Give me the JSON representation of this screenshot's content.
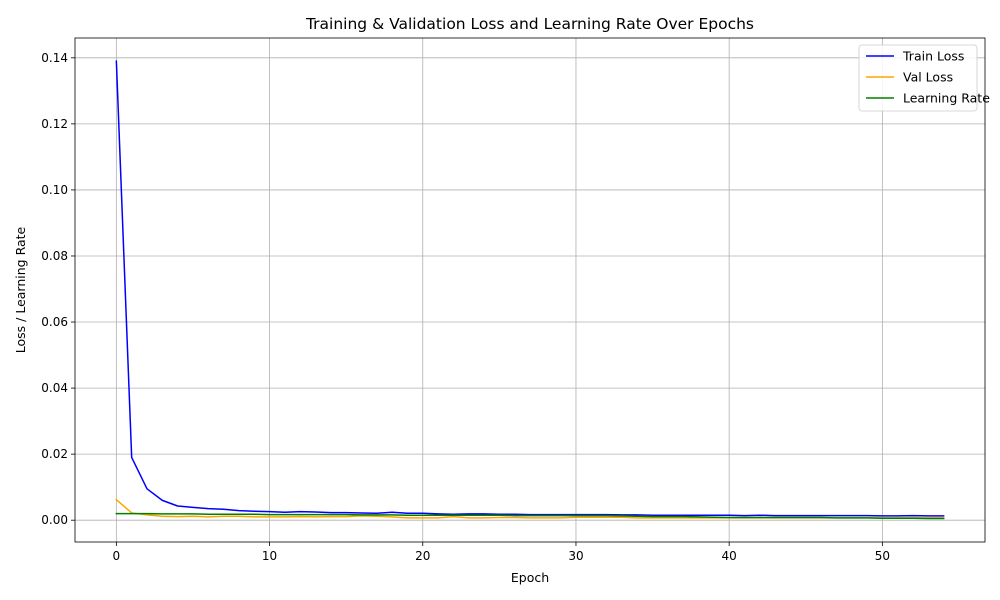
{
  "chart_data": {
    "type": "line",
    "title": "Training & Validation Loss and Learning Rate Over Epochs",
    "xlabel": "Epoch",
    "ylabel": "Loss / Learning Rate",
    "xlim": [
      -2.7,
      56.7
    ],
    "ylim": [
      -0.0066,
      0.146
    ],
    "x_ticks": [
      0,
      10,
      20,
      30,
      40,
      50
    ],
    "y_ticks": [
      0.0,
      0.02,
      0.04,
      0.06,
      0.08,
      0.1,
      0.12,
      0.14
    ],
    "y_tick_labels": [
      "0.00",
      "0.02",
      "0.04",
      "0.06",
      "0.08",
      "0.10",
      "0.12",
      "0.14"
    ],
    "grid": true,
    "legend_position": "top-right",
    "x": [
      0,
      1,
      2,
      3,
      4,
      5,
      6,
      7,
      8,
      9,
      10,
      11,
      12,
      13,
      14,
      15,
      16,
      17,
      18,
      19,
      20,
      21,
      22,
      23,
      24,
      25,
      26,
      27,
      28,
      29,
      30,
      31,
      32,
      33,
      34,
      35,
      36,
      37,
      38,
      39,
      40,
      41,
      42,
      43,
      44,
      45,
      46,
      47,
      48,
      49,
      50,
      51,
      52,
      53,
      54
    ],
    "series": [
      {
        "name": "Train Loss",
        "color": "#0000ff",
        "values": [
          0.139,
          0.019,
          0.0095,
          0.006,
          0.0043,
          0.0039,
          0.0035,
          0.0033,
          0.0029,
          0.0027,
          0.0026,
          0.0024,
          0.0026,
          0.0025,
          0.0023,
          0.0023,
          0.0022,
          0.0021,
          0.0024,
          0.0021,
          0.0021,
          0.0019,
          0.0018,
          0.0019,
          0.0019,
          0.0018,
          0.0018,
          0.0017,
          0.0017,
          0.0017,
          0.0017,
          0.0017,
          0.0017,
          0.0016,
          0.0016,
          0.0015,
          0.0015,
          0.0015,
          0.0015,
          0.0015,
          0.0015,
          0.0014,
          0.0015,
          0.0014,
          0.0014,
          0.0014,
          0.0014,
          0.0014,
          0.0014,
          0.0014,
          0.0013,
          0.0013,
          0.0014,
          0.0013,
          0.0013
        ]
      },
      {
        "name": "Val Loss",
        "color": "#ffa500",
        "values": [
          0.0062,
          0.0022,
          0.0016,
          0.0012,
          0.0011,
          0.0012,
          0.001,
          0.0012,
          0.0012,
          0.001,
          0.001,
          0.001,
          0.0011,
          0.001,
          0.0011,
          0.0011,
          0.0013,
          0.0012,
          0.001,
          0.0007,
          0.0007,
          0.0007,
          0.0011,
          0.0007,
          0.0007,
          0.0008,
          0.0008,
          0.0007,
          0.0007,
          0.0007,
          0.0009,
          0.0009,
          0.0009,
          0.0009,
          0.0007,
          0.0007,
          0.0007,
          0.0007,
          0.0007,
          0.0007,
          0.0007,
          0.0007,
          0.0007,
          0.0007,
          0.0007,
          0.0007,
          0.0007,
          0.0007,
          0.0007,
          0.0007,
          0.0007,
          0.0007,
          0.0007,
          0.0007,
          0.0007
        ]
      },
      {
        "name": "Learning Rate",
        "color": "#008000",
        "values": [
          0.002,
          0.002,
          0.002,
          0.0019,
          0.0019,
          0.0019,
          0.0018,
          0.0018,
          0.0018,
          0.0018,
          0.0017,
          0.0017,
          0.0017,
          0.0017,
          0.0017,
          0.0017,
          0.0016,
          0.0016,
          0.0016,
          0.0015,
          0.0015,
          0.0015,
          0.0015,
          0.0015,
          0.0015,
          0.0015,
          0.0014,
          0.0014,
          0.0014,
          0.0014,
          0.0014,
          0.0014,
          0.0014,
          0.0013,
          0.0012,
          0.0011,
          0.0011,
          0.0011,
          0.001,
          0.0009,
          0.0008,
          0.0008,
          0.0008,
          0.0008,
          0.0008,
          0.0008,
          0.0008,
          0.0007,
          0.0007,
          0.0007,
          0.0006,
          0.0006,
          0.0006,
          0.0005,
          0.0005
        ]
      }
    ]
  }
}
